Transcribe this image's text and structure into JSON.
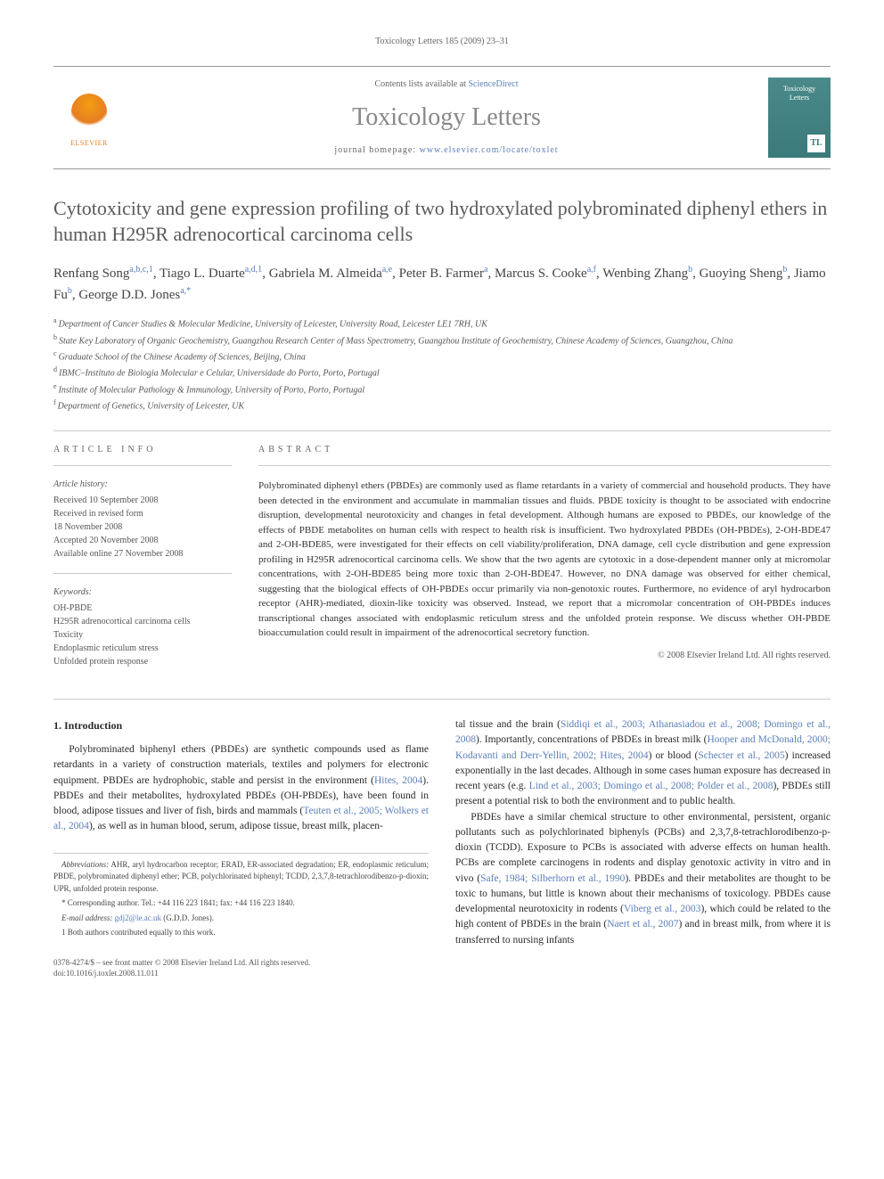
{
  "running_header": "Toxicology Letters 185 (2009) 23–31",
  "banner": {
    "publisher": "ELSEVIER",
    "contents_prefix": "Contents lists available at ",
    "contents_link": "ScienceDirect",
    "journal_name": "Toxicology Letters",
    "homepage_prefix": "journal homepage: ",
    "homepage_url": "www.elsevier.com/locate/toxlet",
    "cover_line1": "Toxicology",
    "cover_line2": "Letters",
    "cover_badge": "TL"
  },
  "title": "Cytotoxicity and gene expression profiling of two hydroxylated polybrominated diphenyl ethers in human H295R adrenocortical carcinoma cells",
  "authors_html_parts": [
    {
      "name": "Renfang Song",
      "sup": "a,b,c,1"
    },
    {
      "name": "Tiago L. Duarte",
      "sup": "a,d,1"
    },
    {
      "name": "Gabriela M. Almeida",
      "sup": "a,e"
    },
    {
      "name": "Peter B. Farmer",
      "sup": "a"
    },
    {
      "name": "Marcus S. Cooke",
      "sup": "a,f"
    },
    {
      "name": "Wenbing Zhang",
      "sup": "b"
    },
    {
      "name": "Guoying Sheng",
      "sup": "b"
    },
    {
      "name": "Jiamo Fu",
      "sup": "b"
    },
    {
      "name": "George D.D. Jones",
      "sup": "a,*"
    }
  ],
  "affiliations": [
    {
      "mark": "a",
      "text": "Department of Cancer Studies & Molecular Medicine, University of Leicester, University Road, Leicester LE1 7RH, UK"
    },
    {
      "mark": "b",
      "text": "State Key Laboratory of Organic Geochemistry, Guangzhou Research Center of Mass Spectrometry, Guangzhou Institute of Geochemistry, Chinese Academy of Sciences, Guangzhou, China"
    },
    {
      "mark": "c",
      "text": "Graduate School of the Chinese Academy of Sciences, Beijing, China"
    },
    {
      "mark": "d",
      "text": "IBMC–Instituto de Biologia Molecular e Celular, Universidade do Porto, Porto, Portugal"
    },
    {
      "mark": "e",
      "text": "Institute of Molecular Pathology & Immunology, University of Porto, Porto, Portugal"
    },
    {
      "mark": "f",
      "text": "Department of Genetics, University of Leicester, UK"
    }
  ],
  "article_info": {
    "heading": "ARTICLE INFO",
    "history_heading": "Article history:",
    "history": [
      "Received 10 September 2008",
      "Received in revised form",
      "18 November 2008",
      "Accepted 20 November 2008",
      "Available online 27 November 2008"
    ],
    "keywords_heading": "Keywords:",
    "keywords": [
      "OH-PBDE",
      "H295R adrenocortical carcinoma cells",
      "Toxicity",
      "Endoplasmic reticulum stress",
      "Unfolded protein response"
    ]
  },
  "abstract": {
    "heading": "ABSTRACT",
    "text": "Polybrominated diphenyl ethers (PBDEs) are commonly used as flame retardants in a variety of commercial and household products. They have been detected in the environment and accumulate in mammalian tissues and fluids. PBDE toxicity is thought to be associated with endocrine disruption, developmental neurotoxicity and changes in fetal development. Although humans are exposed to PBDEs, our knowledge of the effects of PBDE metabolites on human cells with respect to health risk is insufficient. Two hydroxylated PBDEs (OH-PBDEs), 2-OH-BDE47 and 2-OH-BDE85, were investigated for their effects on cell viability/proliferation, DNA damage, cell cycle distribution and gene expression profiling in H295R adrenocortical carcinoma cells. We show that the two agents are cytotoxic in a dose-dependent manner only at micromolar concentrations, with 2-OH-BDE85 being more toxic than 2-OH-BDE47. However, no DNA damage was observed for either chemical, suggesting that the biological effects of OH-PBDEs occur primarily via non-genotoxic routes. Furthermore, no evidence of aryl hydrocarbon receptor (AHR)-mediated, dioxin-like toxicity was observed. Instead, we report that a micromolar concentration of OH-PBDEs induces transcriptional changes associated with endoplasmic reticulum stress and the unfolded protein response. We discuss whether OH-PBDE bioaccumulation could result in impairment of the adrenocortical secretory function.",
    "copyright": "© 2008 Elsevier Ireland Ltd. All rights reserved."
  },
  "section1_heading": "1.  Introduction",
  "col1_para1_pre": "Polybrominated biphenyl ethers (PBDEs) are synthetic compounds used as flame retardants in a variety of construction materials, textiles and polymers for electronic equipment. PBDEs are hydrophobic, stable and persist in the environment (",
  "col1_ref1": "Hites, 2004",
  "col1_para1_mid1": "). PBDEs and their metabolites, hydroxylated PBDEs (OH-PBDEs), have been found in blood, adipose tissues and liver of fish, birds and mammals (",
  "col1_ref2": "Teuten et al., 2005; Wolkers et al., 2004",
  "col1_para1_post": "), as well as in human blood, serum, adipose tissue, breast milk, placen-",
  "col2_para1_pre": "tal tissue and the brain (",
  "col2_ref1": "Siddiqi et al., 2003; Athanasiadou et al., 2008; Domingo et al., 2008",
  "col2_para1_mid1": "). Importantly, concentrations of PBDEs in breast milk (",
  "col2_ref2": "Hooper and McDonald, 2000; Kodavanti and Derr-Yellin, 2002; Hites, 2004",
  "col2_para1_mid2": ") or blood (",
  "col2_ref3": "Schecter et al., 2005",
  "col2_para1_mid3": ") increased exponentially in the last decades. Although in some cases human exposure has decreased in recent years (e.g. ",
  "col2_ref4": "Lind et al., 2003; Domingo et al., 2008; Polder et al., 2008",
  "col2_para1_post": "), PBDEs still present a potential risk to both the environment and to public health.",
  "col2_para2_pre": "PBDEs have a similar chemical structure to other environmental, persistent, organic pollutants such as polychlorinated biphenyls (PCBs) and 2,3,7,8-tetrachlorodibenzo-p-dioxin (TCDD). Exposure to PCBs is associated with adverse effects on human health. PCBs are complete carcinogens in rodents and display genotoxic activity in vitro and in vivo (",
  "col2_ref5": "Safe, 1984; Silberhorn et al., 1990",
  "col2_para2_mid1": "). PBDEs and their metabolites are thought to be toxic to humans, but little is known about their mechanisms of toxicology. PBDEs cause developmental neurotoxicity in rodents (",
  "col2_ref6": "Viberg et al., 2003",
  "col2_para2_mid2": "), which could be related to the high content of PBDEs in the brain (",
  "col2_ref7": "Naert et al., 2007",
  "col2_para2_post": ") and in breast milk, from where it is transferred to nursing infants",
  "footnotes": {
    "abbrev_label": "Abbreviations:",
    "abbrev_text": " AHR, aryl hydrocarbon receptor; ERAD, ER-associated degradation; ER, endoplasmic reticulum; PBDE, polybrominated diphenyl ether; PCB, polychlorinated biphenyl; TCDD, 2,3,7,8-tetrachlorodibenzo-p-dioxin; UPR, unfolded protein response.",
    "corr_label": "* Corresponding author. Tel.: +44 116 223 1841; fax: +44 116 223 1840.",
    "email_label": "E-mail address: ",
    "email": "gdj2@le.ac.uk",
    "email_who": " (G.D.D. Jones).",
    "equal": "1  Both authors contributed equally to this work."
  },
  "footer": {
    "line1": "0378-4274/$ – see front matter © 2008 Elsevier Ireland Ltd. All rights reserved.",
    "line2": "doi:10.1016/j.toxlet.2008.11.011"
  }
}
